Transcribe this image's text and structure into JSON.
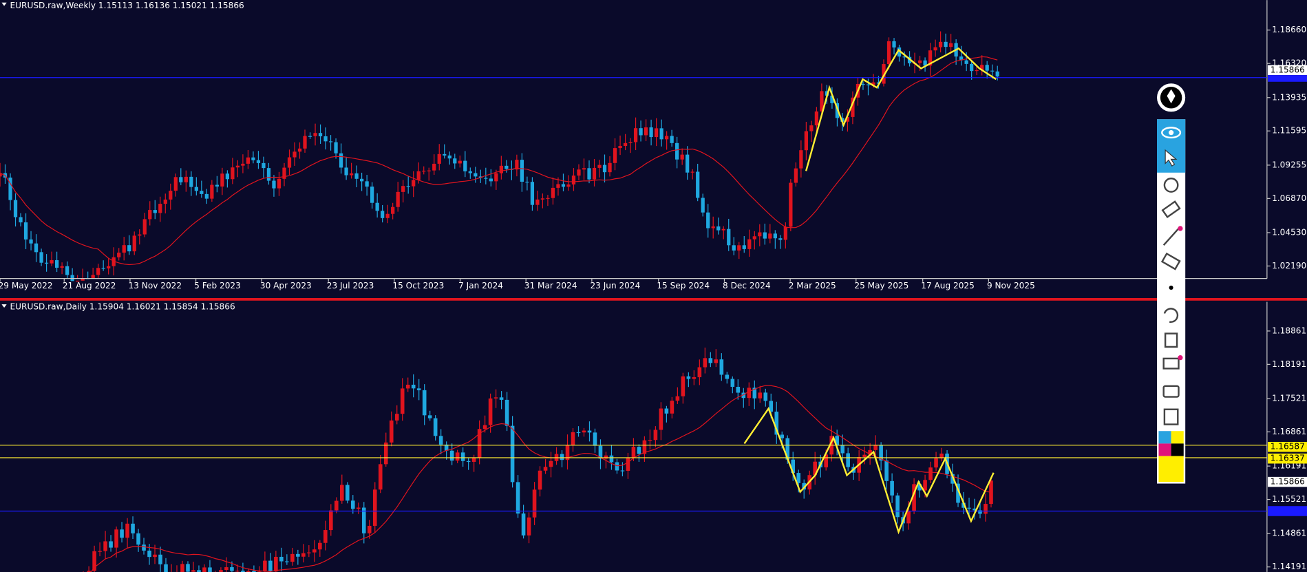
{
  "top_chart": {
    "header": "EURUSD.raw,Weekly  1.15113 1.16136 1.15021 1.15866",
    "price_labels": [
      "1.18660",
      "1.16320",
      "1.13935",
      "1.11595",
      "1.09255",
      "1.06870",
      "1.04530",
      "1.02190"
    ],
    "price_tag": "1.15866",
    "date_labels": [
      "29 May 2022",
      "21 Aug 2022",
      "13 Nov 2022",
      "5 Feb 2023",
      "30 Apr 2023",
      "23 Jul 2023",
      "15 Oct 2023",
      "7 Jan 2024",
      "31 Mar 2024",
      "23 Jun 2024",
      "15 Sep 2024",
      "8 Dec 2024",
      "2 Mar 2025",
      "25 May 2025",
      "17 Aug 2025",
      "9 Nov 2025"
    ]
  },
  "bottom_chart": {
    "header": "EURUSD.raw,Daily  1.15904 1.16021 1.15854 1.15866",
    "price_labels": [
      "1.18861",
      "1.18191",
      "1.17521",
      "1.16861",
      "1.16191",
      "1.15521",
      "1.14861",
      "1.14191"
    ],
    "price_tags": [
      "1.16587",
      "1.16337",
      "1.15866"
    ]
  }
}
